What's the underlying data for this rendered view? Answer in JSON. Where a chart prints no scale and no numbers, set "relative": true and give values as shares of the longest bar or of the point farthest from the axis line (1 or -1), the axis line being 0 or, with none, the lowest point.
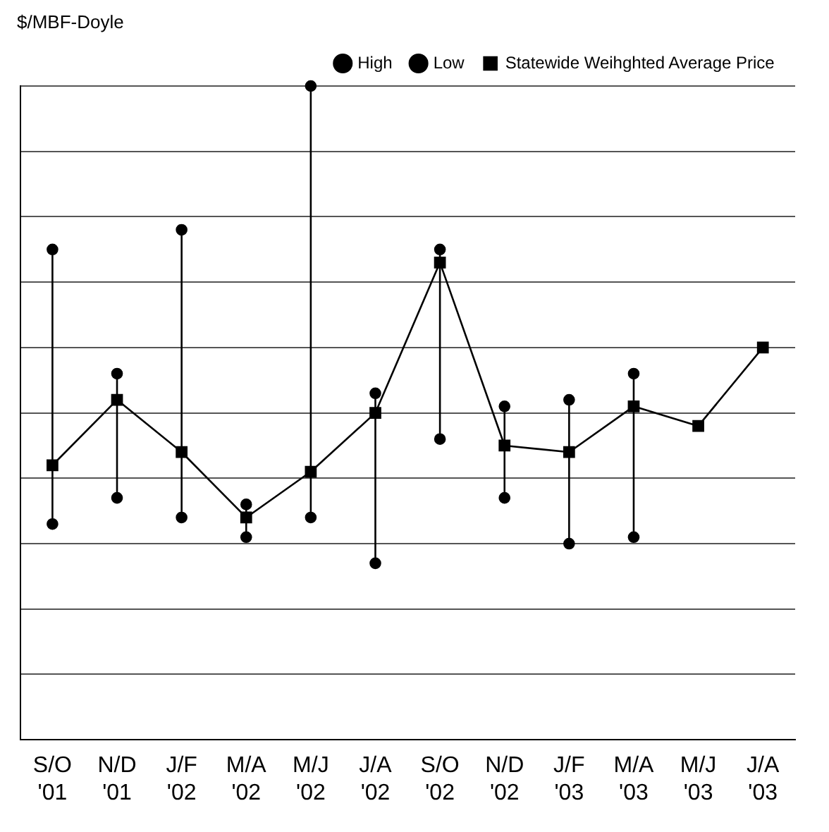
{
  "chart_data": {
    "type": "line",
    "ylabel": "$/MBF-Doyle",
    "relative": true,
    "grid": "y",
    "legend": "top",
    "categories": [
      "S/O '01",
      "N/D '01",
      "J/F '02",
      "M/A '02",
      "M/J '02",
      "J/A '02",
      "S/O '02",
      "N/D '02",
      "J/F '03",
      "M/A '03",
      "M/J '03",
      "J/A '03"
    ],
    "series": [
      {
        "name": "High",
        "type": "scatter",
        "marker": "circle",
        "color": "#000000",
        "values": [
          0.75,
          0.56,
          0.78,
          0.36,
          1,
          0.53,
          0.75,
          0.51,
          0.52,
          0.56,
          null,
          null
        ]
      },
      {
        "name": "Low",
        "type": "scatter",
        "marker": "circle",
        "color": "#000000",
        "values": [
          0.33,
          0.37,
          0.34,
          0.31,
          0.34,
          0.27,
          0.46,
          0.37,
          0.3,
          0.31,
          null,
          null
        ]
      },
      {
        "name": "Statewide Weihghted Average Price",
        "type": "line",
        "marker": "square",
        "line_style": "solid",
        "color": "#000000",
        "values": [
          0.42,
          0.52,
          0.44,
          0.34,
          0.41,
          0.5,
          0.73,
          0.45,
          0.44,
          0.51,
          0.48,
          0.6
        ]
      }
    ]
  }
}
